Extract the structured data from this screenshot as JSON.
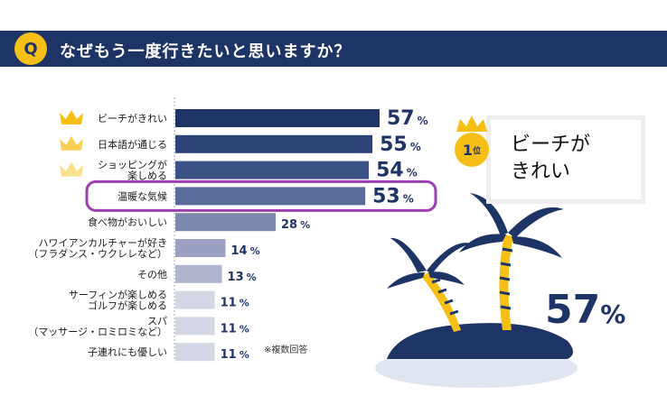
{
  "header": {
    "q_label": "Q",
    "title": "なぜもう一度行きたいと思いますか？"
  },
  "chart_data": {
    "type": "bar",
    "orientation": "horizontal",
    "categories": [
      [
        "ビーチがきれい"
      ],
      [
        "日本語が通じる"
      ],
      [
        "ショッピングが",
        "楽しめる"
      ],
      [
        "温暖な気候"
      ],
      [
        "食べ物がおいしい"
      ],
      [
        "ハワイアンカルチャーが好き",
        "（フラダンス・ウクレレなど）"
      ],
      [
        "その他"
      ],
      [
        "サーフィンが楽しめる",
        "ゴルフが楽しめる"
      ],
      [
        "スパ",
        "（マッサージ・ロミロミなど）"
      ],
      [
        "子連れにも優しい"
      ]
    ],
    "values": [
      57,
      55,
      54,
      53,
      28,
      14,
      13,
      11,
      11,
      11
    ],
    "unit": "%",
    "highlighted_index": 3,
    "crowned_top": 3,
    "bar_colors": [
      "#1f3466",
      "#2b4377",
      "#3c5286",
      "#5a6c9c",
      "#7d88ae",
      "#9aa1c2",
      "#b1b6d0",
      "#d3d6e5",
      "#d3d6e5",
      "#d3d6e5"
    ],
    "highlight_color": "#9b3fb2",
    "crown_colors": [
      "#f6bf16",
      "#f9cf55",
      "#fbe08e"
    ]
  },
  "note": "※複数回答",
  "rank": {
    "number": "1",
    "suffix": "位",
    "label": "ビーチが\nきれい",
    "value": "57",
    "unit": "%"
  }
}
